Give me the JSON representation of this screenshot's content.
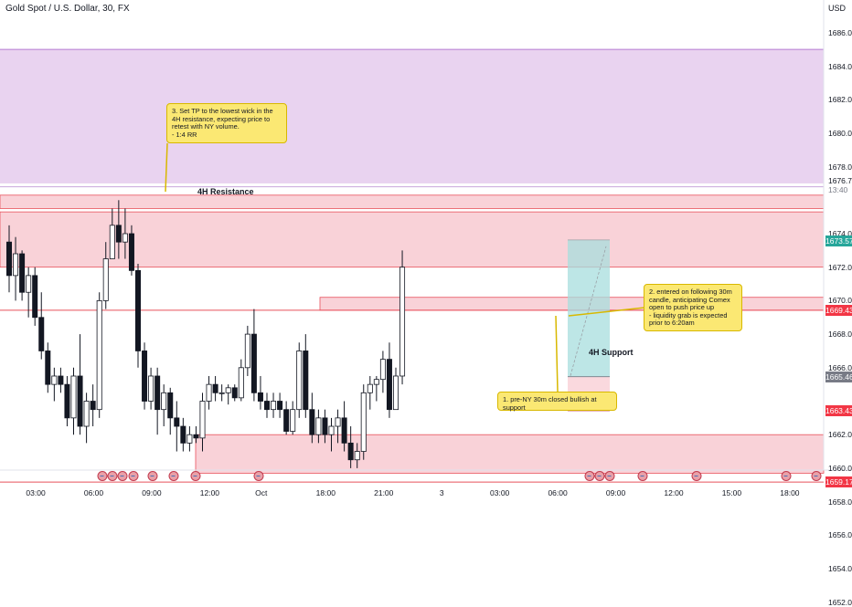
{
  "header": {
    "title": "Gold Spot / U.S. Dollar, 30, FX",
    "currency": "USD"
  },
  "y_axis": {
    "ticks": [
      "1686.00",
      "1684.00",
      "1682.00",
      "1680.00",
      "1678.00",
      "1674.00",
      "1672.00",
      "1670.00",
      "1668.00",
      "1666.00",
      "1662.00",
      "1660.00",
      "1658.00",
      "1656.00",
      "1654.00",
      "1652.00"
    ],
    "tick_values": [
      1686,
      1684,
      1682,
      1680,
      1678,
      1674,
      1672,
      1670,
      1668,
      1666,
      1662,
      1660,
      1658,
      1656,
      1654,
      1652
    ],
    "last_price": {
      "price": "1676.77",
      "countdown": "13:40"
    }
  },
  "x_axis": {
    "labels": [
      "03:00",
      "06:00",
      "09:00",
      "12:00",
      "Oct",
      "18:00",
      "21:00",
      "3",
      "03:00",
      "06:00",
      "09:00",
      "12:00",
      "15:00",
      "18:00"
    ],
    "bar_index": [
      1,
      10,
      19,
      28,
      36,
      46,
      55,
      64,
      73,
      82,
      91,
      100,
      109,
      118
    ]
  },
  "price_tags": [
    {
      "text": "1673.57",
      "price": 1673.57,
      "color": "#26a69a"
    },
    {
      "text": "1669.43",
      "price": 1669.43,
      "color": "#f23645"
    },
    {
      "text": "1665.46",
      "price": 1665.46,
      "color": "#787b86"
    },
    {
      "text": "1663.43",
      "price": 1663.43,
      "color": "#f23645"
    },
    {
      "text": "1659.17",
      "price": 1659.17,
      "color": "#f23645"
    }
  ],
  "zones": {
    "resistance_label": "4H Resistance",
    "support_label": "4H Support"
  },
  "annotations": {
    "note_tp": "3. Set TP to the lowest wick in the 4H resistance, expecting price to retest with NY volume.\n- 1:4 RR",
    "note_entry": "2. entered on following 30m candle, anticipating Comex open to push price up\n- liquidity grab is expected prior to 6:20am",
    "note_pre_ny": "1. pre-NY 30m closed bullish at support"
  },
  "colors": {
    "up": "#26a69a",
    "down": "#131722",
    "candle_up_fill": "#ffffff",
    "purple_zone": "#e9d3f0",
    "red_zone": "#f9d2d8",
    "red_line": "#e8505b",
    "target": "#a7dede",
    "stop": "#f9d2d8",
    "note_bg": "#fbe873"
  },
  "event_icons": [
    "us-flag-icon"
  ],
  "chart_data": {
    "type": "candlestick",
    "symbol": "Gold Spot / U.S. Dollar",
    "interval": "30",
    "ylim": [
      1651.5,
      1688
    ],
    "candles": [
      [
        1673.5,
        1674.5,
        1670.5,
        1671.5
      ],
      [
        1671.5,
        1673.8,
        1670.0,
        1672.8
      ],
      [
        1672.8,
        1673.0,
        1670.0,
        1670.5
      ],
      [
        1670.5,
        1672.0,
        1669.0,
        1671.5
      ],
      [
        1671.5,
        1672.0,
        1668.5,
        1669.0
      ],
      [
        1669.0,
        1670.5,
        1666.5,
        1667.0
      ],
      [
        1667.0,
        1667.5,
        1664.5,
        1665.0
      ],
      [
        1665.0,
        1666.0,
        1664.0,
        1665.5
      ],
      [
        1665.5,
        1666.0,
        1664.5,
        1665.0
      ],
      [
        1665.0,
        1665.5,
        1662.5,
        1663.0
      ],
      [
        1663.0,
        1666.0,
        1662.0,
        1665.5
      ],
      [
        1665.5,
        1668.0,
        1662.0,
        1662.5
      ],
      [
        1662.5,
        1664.5,
        1661.5,
        1664.0
      ],
      [
        1664.0,
        1665.0,
        1662.5,
        1663.5
      ],
      [
        1663.5,
        1670.5,
        1663.0,
        1670.0
      ],
      [
        1670.0,
        1673.5,
        1669.5,
        1672.5
      ],
      [
        1672.5,
        1675.5,
        1672.5,
        1674.5
      ],
      [
        1674.5,
        1676.0,
        1672.5,
        1673.5
      ],
      [
        1673.5,
        1675.5,
        1672.5,
        1674.0
      ],
      [
        1674.0,
        1674.5,
        1671.5,
        1671.8
      ],
      [
        1671.8,
        1672.2,
        1666.0,
        1667.0
      ],
      [
        1667.0,
        1667.5,
        1663.5,
        1664.0
      ],
      [
        1664.0,
        1666.0,
        1663.5,
        1665.5
      ],
      [
        1665.5,
        1666.0,
        1662.0,
        1663.5
      ],
      [
        1663.5,
        1665.0,
        1662.5,
        1664.5
      ],
      [
        1664.5,
        1664.8,
        1662.0,
        1663.0
      ],
      [
        1663.0,
        1664.0,
        1661.0,
        1662.5
      ],
      [
        1662.5,
        1663.0,
        1661.0,
        1661.5
      ],
      [
        1661.5,
        1662.5,
        1661.0,
        1662.0
      ],
      [
        1662.0,
        1662.5,
        1661.5,
        1661.8
      ],
      [
        1661.8,
        1664.5,
        1661.0,
        1664.0
      ],
      [
        1664.0,
        1665.5,
        1663.5,
        1665.0
      ],
      [
        1665.0,
        1665.5,
        1664.0,
        1664.5
      ],
      [
        1664.5,
        1665.0,
        1664.0,
        1664.5
      ],
      [
        1664.5,
        1665.0,
        1663.8,
        1664.8
      ],
      [
        1664.8,
        1665.0,
        1664.0,
        1664.2
      ],
      [
        1664.2,
        1666.5,
        1664.0,
        1666.0
      ],
      [
        1666.0,
        1668.5,
        1665.5,
        1668.0
      ],
      [
        1668.0,
        1669.5,
        1664.0,
        1664.5
      ],
      [
        1664.5,
        1665.5,
        1663.5,
        1664.0
      ],
      [
        1664.0,
        1664.5,
        1663.0,
        1663.5
      ],
      [
        1663.5,
        1664.5,
        1663.0,
        1664.0
      ],
      [
        1664.0,
        1664.5,
        1663.0,
        1663.5
      ],
      [
        1663.5,
        1664.0,
        1662.0,
        1662.2
      ],
      [
        1662.2,
        1664.0,
        1662.0,
        1663.5
      ],
      [
        1663.5,
        1667.5,
        1663.0,
        1667.0
      ],
      [
        1667.0,
        1668.0,
        1663.0,
        1663.5
      ],
      [
        1663.5,
        1664.5,
        1661.5,
        1662.0
      ],
      [
        1662.0,
        1663.5,
        1661.5,
        1663.0
      ],
      [
        1663.0,
        1663.5,
        1661.5,
        1662.0
      ],
      [
        1662.0,
        1663.0,
        1661.0,
        1662.5
      ],
      [
        1662.5,
        1663.5,
        1661.5,
        1663.0
      ],
      [
        1663.0,
        1664.0,
        1661.0,
        1661.5
      ],
      [
        1661.5,
        1662.5,
        1660.0,
        1660.5
      ],
      [
        1660.5,
        1661.5,
        1660.0,
        1661.0
      ],
      [
        1661.0,
        1665.0,
        1660.5,
        1664.5
      ],
      [
        1664.5,
        1665.5,
        1663.5,
        1665.0
      ],
      [
        1665.0,
        1665.5,
        1664.0,
        1665.3
      ],
      [
        1665.3,
        1667.0,
        1664.5,
        1666.5
      ],
      [
        1666.5,
        1667.5,
        1663.0,
        1663.5
      ],
      [
        1663.5,
        1666.0,
        1663.5,
        1665.5
      ],
      [
        1665.5,
        1673.0,
        1665.0,
        1672.0
      ]
    ],
    "trade": {
      "entry": 1665.46,
      "take_profit": 1673.57,
      "stop_loss": 1663.43
    },
    "levels": {
      "resistance_zone": [
        1672.0,
        1675.3
      ],
      "resistance_lines": [
        1675.5,
        1676.3
      ],
      "purple_zone": [
        1677.0,
        1685.0
      ],
      "support_zone": [
        1659.7,
        1662.0
      ],
      "red_lines": [
        1669.43,
        1659.17
      ]
    }
  }
}
